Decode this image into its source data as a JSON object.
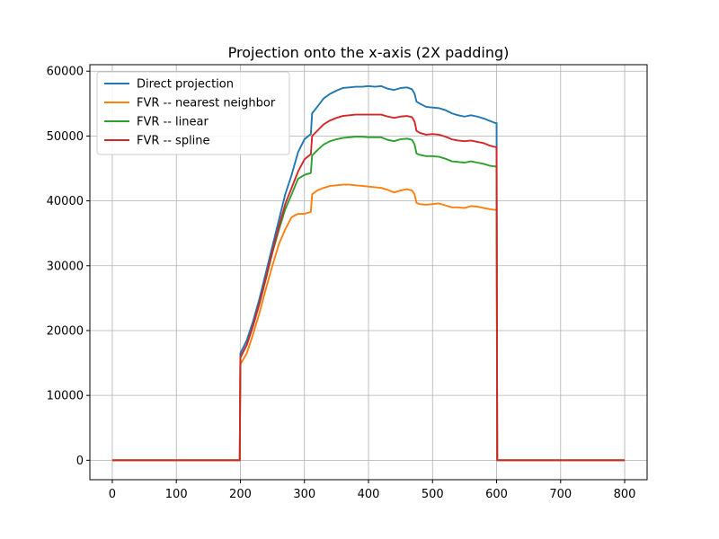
{
  "chart_data": {
    "type": "line",
    "title": "Projection onto the x-axis (2X padding)",
    "xlabel": "",
    "ylabel": "",
    "xlim": [
      -35,
      835
    ],
    "ylim": [
      -3000,
      61000
    ],
    "xticks": [
      0,
      100,
      200,
      300,
      400,
      500,
      600,
      700,
      800
    ],
    "yticks": [
      0,
      10000,
      20000,
      30000,
      40000,
      50000,
      60000
    ],
    "grid": true,
    "legend_position": "upper-left",
    "series": [
      {
        "name": "Direct projection",
        "color": "#1f77b4",
        "points": [
          [
            0,
            0
          ],
          [
            199,
            0
          ],
          [
            200,
            16500
          ],
          [
            210,
            18500
          ],
          [
            220,
            21500
          ],
          [
            230,
            25000
          ],
          [
            240,
            29000
          ],
          [
            250,
            33000
          ],
          [
            260,
            37000
          ],
          [
            270,
            41000
          ],
          [
            280,
            44000
          ],
          [
            290,
            47500
          ],
          [
            300,
            49500
          ],
          [
            310,
            50300
          ],
          [
            312,
            53500
          ],
          [
            320,
            54500
          ],
          [
            330,
            55800
          ],
          [
            340,
            56500
          ],
          [
            350,
            57000
          ],
          [
            360,
            57400
          ],
          [
            370,
            57500
          ],
          [
            380,
            57600
          ],
          [
            390,
            57600
          ],
          [
            400,
            57700
          ],
          [
            410,
            57600
          ],
          [
            420,
            57700
          ],
          [
            430,
            57300
          ],
          [
            440,
            57100
          ],
          [
            450,
            57400
          ],
          [
            460,
            57500
          ],
          [
            468,
            57200
          ],
          [
            472,
            56500
          ],
          [
            475,
            55300
          ],
          [
            480,
            55000
          ],
          [
            490,
            54500
          ],
          [
            500,
            54400
          ],
          [
            510,
            54300
          ],
          [
            520,
            54000
          ],
          [
            530,
            53500
          ],
          [
            540,
            53200
          ],
          [
            550,
            53000
          ],
          [
            560,
            53200
          ],
          [
            570,
            53000
          ],
          [
            580,
            52700
          ],
          [
            590,
            52300
          ],
          [
            598,
            52000
          ],
          [
            600,
            52000
          ],
          [
            601,
            0
          ],
          [
            800,
            0
          ]
        ]
      },
      {
        "name": "FVR -- nearest neighbor",
        "color": "#ff7f0e",
        "points": [
          [
            0,
            0
          ],
          [
            199,
            0
          ],
          [
            200,
            14800
          ],
          [
            210,
            16500
          ],
          [
            220,
            19500
          ],
          [
            230,
            22800
          ],
          [
            240,
            26500
          ],
          [
            250,
            30000
          ],
          [
            260,
            33300
          ],
          [
            270,
            35600
          ],
          [
            280,
            37500
          ],
          [
            290,
            38000
          ],
          [
            300,
            38000
          ],
          [
            310,
            38300
          ],
          [
            312,
            41000
          ],
          [
            320,
            41600
          ],
          [
            330,
            42000
          ],
          [
            340,
            42300
          ],
          [
            350,
            42400
          ],
          [
            360,
            42500
          ],
          [
            370,
            42500
          ],
          [
            380,
            42400
          ],
          [
            390,
            42300
          ],
          [
            400,
            42200
          ],
          [
            410,
            42100
          ],
          [
            420,
            42000
          ],
          [
            430,
            41700
          ],
          [
            440,
            41300
          ],
          [
            450,
            41600
          ],
          [
            460,
            41800
          ],
          [
            468,
            41600
          ],
          [
            472,
            41000
          ],
          [
            475,
            39700
          ],
          [
            480,
            39500
          ],
          [
            490,
            39400
          ],
          [
            500,
            39500
          ],
          [
            510,
            39600
          ],
          [
            520,
            39300
          ],
          [
            530,
            39000
          ],
          [
            540,
            39000
          ],
          [
            550,
            38900
          ],
          [
            560,
            39200
          ],
          [
            570,
            39100
          ],
          [
            580,
            38900
          ],
          [
            590,
            38700
          ],
          [
            598,
            38600
          ],
          [
            600,
            38600
          ],
          [
            601,
            0
          ],
          [
            800,
            0
          ]
        ]
      },
      {
        "name": "FVR -- linear",
        "color": "#2ca02c",
        "points": [
          [
            0,
            0
          ],
          [
            199,
            0
          ],
          [
            200,
            15800
          ],
          [
            210,
            17800
          ],
          [
            220,
            20800
          ],
          [
            230,
            24200
          ],
          [
            240,
            28000
          ],
          [
            250,
            32000
          ],
          [
            260,
            35500
          ],
          [
            270,
            38700
          ],
          [
            280,
            41000
          ],
          [
            290,
            43400
          ],
          [
            300,
            44000
          ],
          [
            310,
            44300
          ],
          [
            312,
            47000
          ],
          [
            320,
            47800
          ],
          [
            330,
            48700
          ],
          [
            340,
            49200
          ],
          [
            350,
            49500
          ],
          [
            360,
            49700
          ],
          [
            370,
            49800
          ],
          [
            380,
            49900
          ],
          [
            390,
            49900
          ],
          [
            400,
            49800
          ],
          [
            410,
            49800
          ],
          [
            420,
            49800
          ],
          [
            430,
            49400
          ],
          [
            440,
            49200
          ],
          [
            450,
            49500
          ],
          [
            460,
            49600
          ],
          [
            468,
            49400
          ],
          [
            472,
            48700
          ],
          [
            475,
            47300
          ],
          [
            480,
            47100
          ],
          [
            490,
            46900
          ],
          [
            500,
            46900
          ],
          [
            510,
            46800
          ],
          [
            520,
            46500
          ],
          [
            530,
            46100
          ],
          [
            540,
            46000
          ],
          [
            550,
            45900
          ],
          [
            560,
            46100
          ],
          [
            570,
            45900
          ],
          [
            580,
            45700
          ],
          [
            590,
            45400
          ],
          [
            598,
            45300
          ],
          [
            600,
            45300
          ],
          [
            601,
            0
          ],
          [
            800,
            0
          ]
        ]
      },
      {
        "name": "FVR -- spline",
        "color": "#d62728",
        "points": [
          [
            0,
            0
          ],
          [
            199,
            0
          ],
          [
            200,
            15900
          ],
          [
            210,
            17800
          ],
          [
            220,
            20800
          ],
          [
            230,
            24300
          ],
          [
            240,
            28200
          ],
          [
            250,
            32200
          ],
          [
            260,
            36000
          ],
          [
            270,
            39500
          ],
          [
            280,
            42000
          ],
          [
            290,
            44500
          ],
          [
            300,
            46400
          ],
          [
            310,
            47200
          ],
          [
            312,
            50000
          ],
          [
            320,
            50800
          ],
          [
            330,
            51800
          ],
          [
            340,
            52400
          ],
          [
            350,
            52800
          ],
          [
            360,
            53100
          ],
          [
            370,
            53200
          ],
          [
            380,
            53300
          ],
          [
            390,
            53300
          ],
          [
            400,
            53300
          ],
          [
            410,
            53300
          ],
          [
            420,
            53300
          ],
          [
            430,
            53000
          ],
          [
            440,
            52800
          ],
          [
            450,
            53000
          ],
          [
            460,
            53100
          ],
          [
            468,
            52900
          ],
          [
            472,
            52200
          ],
          [
            475,
            50800
          ],
          [
            480,
            50500
          ],
          [
            490,
            50200
          ],
          [
            500,
            50300
          ],
          [
            510,
            50200
          ],
          [
            520,
            49900
          ],
          [
            530,
            49500
          ],
          [
            540,
            49300
          ],
          [
            550,
            49200
          ],
          [
            560,
            49300
          ],
          [
            570,
            49100
          ],
          [
            580,
            48900
          ],
          [
            590,
            48500
          ],
          [
            598,
            48300
          ],
          [
            600,
            48300
          ],
          [
            601,
            0
          ],
          [
            800,
            0
          ]
        ]
      }
    ]
  }
}
